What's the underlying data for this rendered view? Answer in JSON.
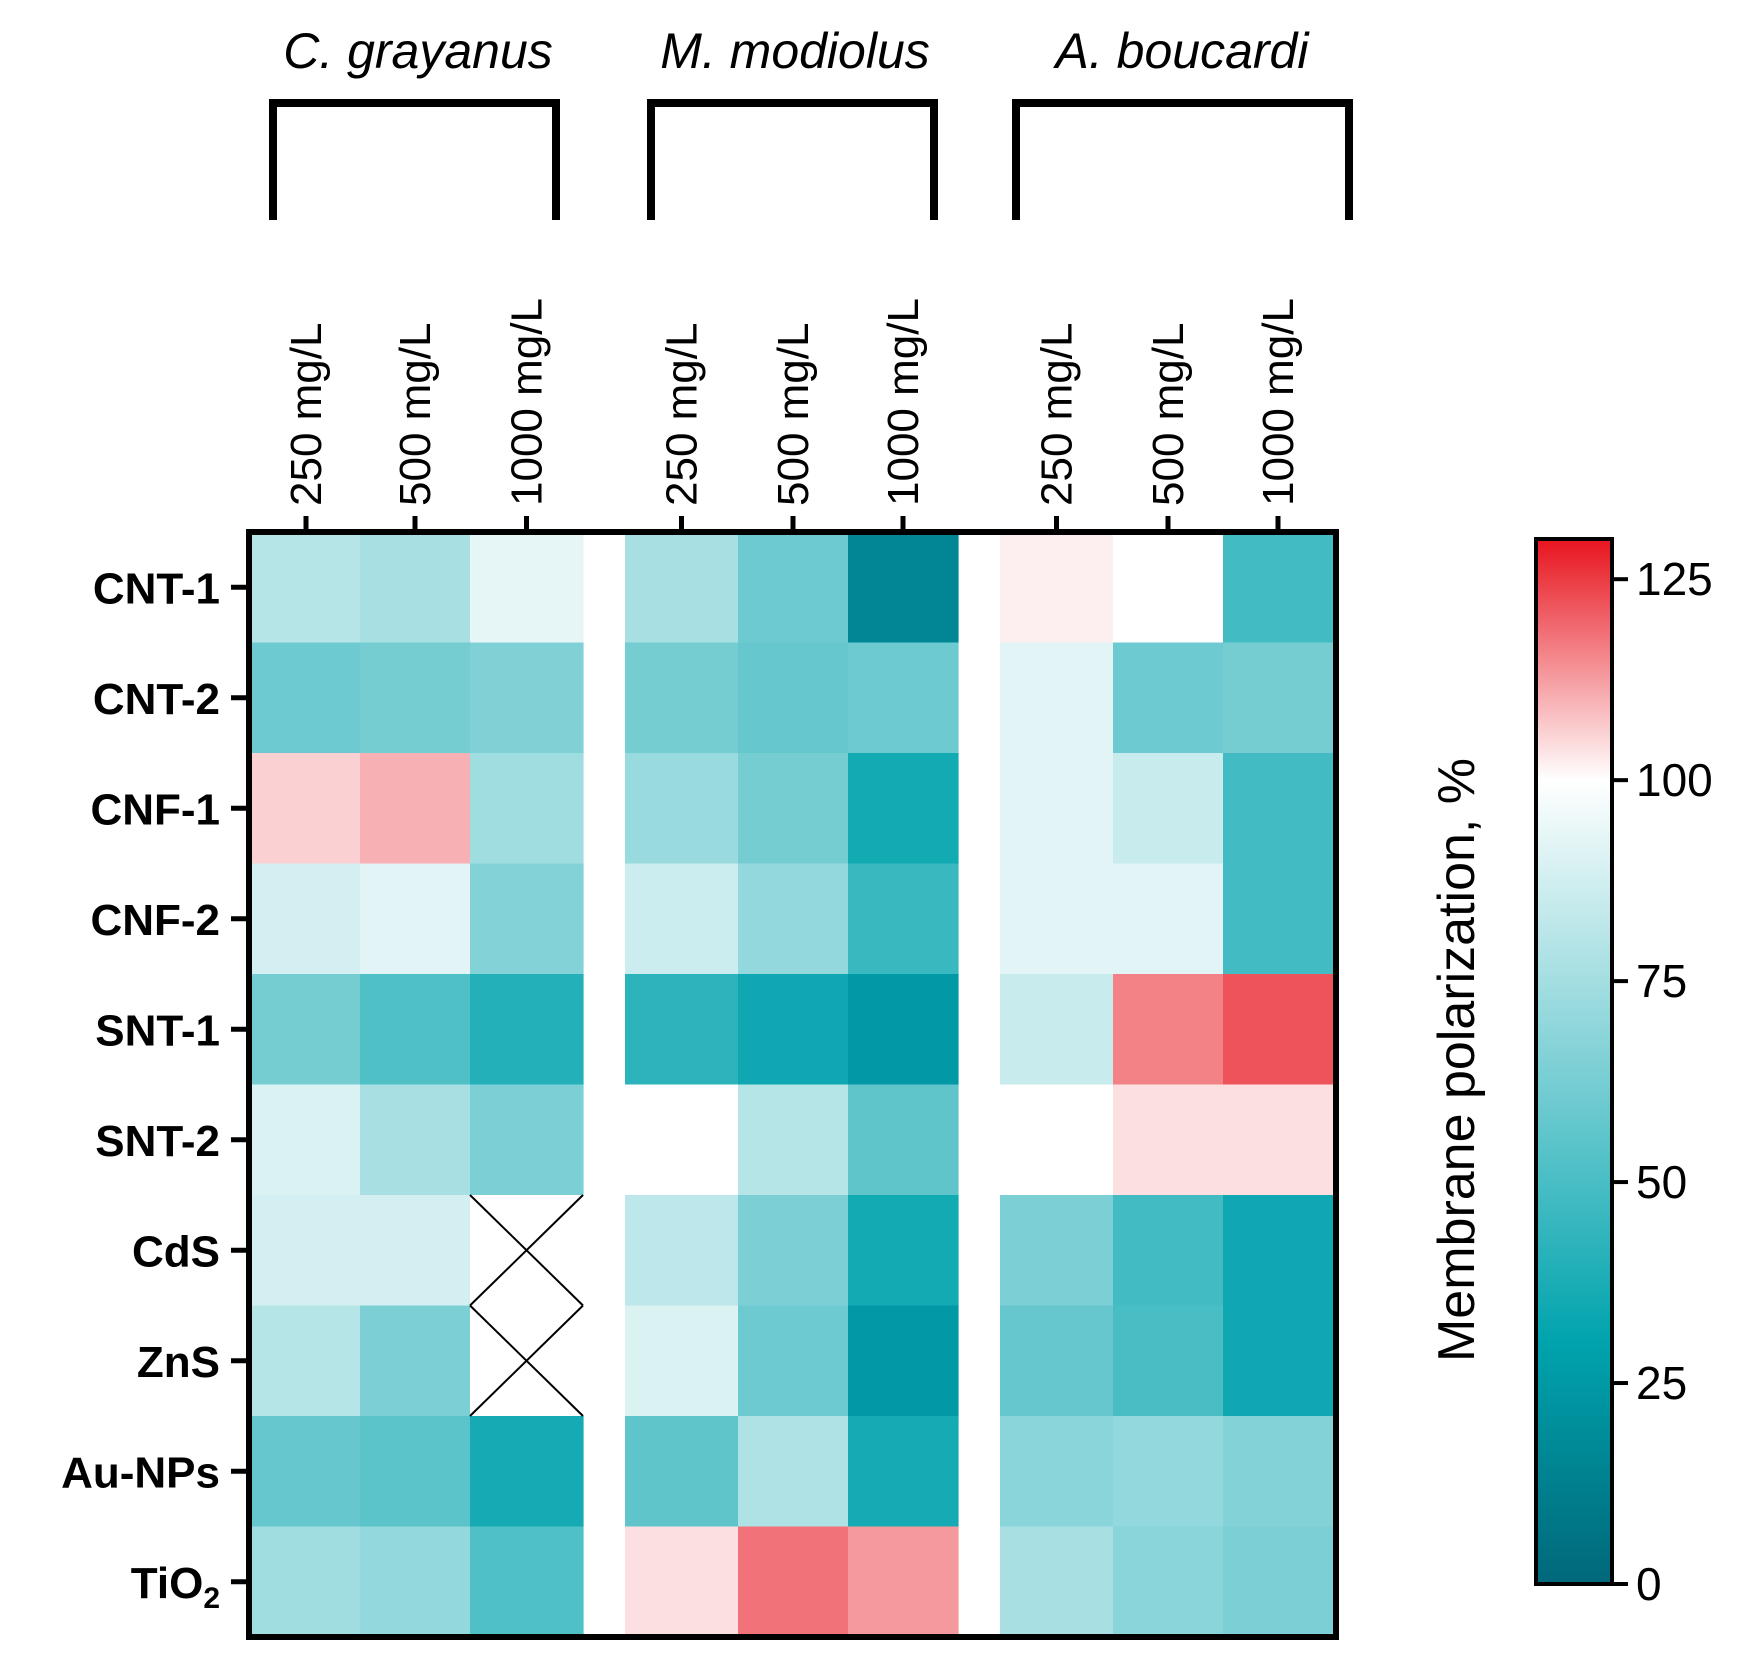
{
  "chart_data": {
    "type": "heatmap",
    "groups": [
      "C. grayanus",
      "M. modiolus",
      "A. boucardi"
    ],
    "columns": [
      {
        "group": 0,
        "label": "250 mg/L"
      },
      {
        "group": 0,
        "label": "500 mg/L"
      },
      {
        "group": 0,
        "label": "1000 mg/L"
      },
      {
        "group": 1,
        "label": "250 mg/L"
      },
      {
        "group": 1,
        "label": "500 mg/L"
      },
      {
        "group": 1,
        "label": "1000 mg/L"
      },
      {
        "group": 2,
        "label": "250 mg/L"
      },
      {
        "group": 2,
        "label": "500 mg/L"
      },
      {
        "group": 2,
        "label": "1000 mg/L"
      }
    ],
    "rows": [
      {
        "label": "CNT-1",
        "sub": ""
      },
      {
        "label": "CNT-2",
        "sub": ""
      },
      {
        "label": "CNF-1",
        "sub": ""
      },
      {
        "label": "CNF-2",
        "sub": ""
      },
      {
        "label": "SNT-1",
        "sub": ""
      },
      {
        "label": "SNT-2",
        "sub": ""
      },
      {
        "label": "CdS",
        "sub": ""
      },
      {
        "label": "ZnS",
        "sub": ""
      },
      {
        "label": "Au-NPs",
        "sub": ""
      },
      {
        "label": "TiO",
        "sub": "2"
      }
    ],
    "values": [
      [
        80,
        76,
        93,
        76,
        60,
        15,
        102,
        100,
        48
      ],
      [
        60,
        62,
        65,
        62,
        58,
        60,
        92,
        60,
        62
      ],
      [
        106,
        110,
        74,
        72,
        62,
        35,
        92,
        85,
        48
      ],
      [
        88,
        92,
        66,
        86,
        70,
        46,
        92,
        92,
        48
      ],
      [
        62,
        52,
        40,
        42,
        34,
        25,
        85,
        116,
        122
      ],
      [
        90,
        76,
        64,
        100,
        80,
        56,
        100,
        104,
        104
      ],
      [
        88,
        88,
        null,
        82,
        64,
        35,
        64,
        48,
        34
      ],
      [
        80,
        64,
        null,
        90,
        60,
        25,
        58,
        50,
        34
      ],
      [
        58,
        55,
        36,
        56,
        78,
        36,
        68,
        70,
        66
      ],
      [
        74,
        70,
        52,
        104,
        118,
        113,
        76,
        68,
        64
      ]
    ],
    "missing_marker": "cross",
    "colorbar": {
      "title": "Membrane polarization, %",
      "min": 0,
      "max": 130,
      "ticks": [
        0,
        25,
        50,
        75,
        100,
        125
      ],
      "stops": [
        {
          "value": 0,
          "color": "#00687a"
        },
        {
          "value": 30,
          "color": "#00a3ad"
        },
        {
          "value": 100,
          "color": "#ffffff"
        },
        {
          "value": 130,
          "color": "#e8141e"
        }
      ]
    }
  }
}
